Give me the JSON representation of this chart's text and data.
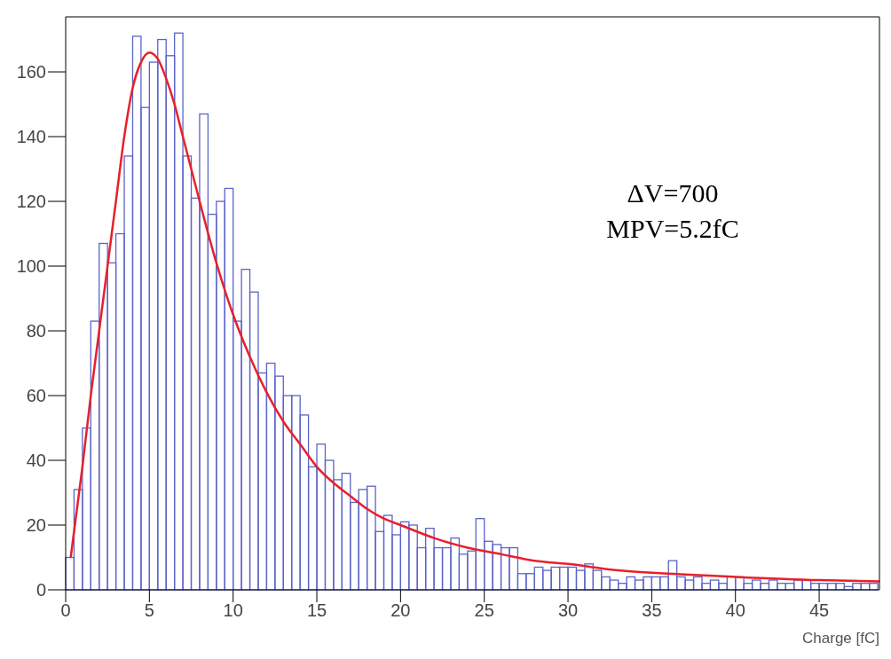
{
  "chart_data": {
    "type": "histogram",
    "xlabel": "Charge [fC]",
    "annotations": [
      "ΔV=700",
      "MPV=5.2fC"
    ],
    "bins": [
      0,
      0.5,
      1,
      1.5,
      2,
      2.5,
      3,
      3.5,
      4,
      4.5,
      5,
      5.5,
      6,
      6.5,
      7,
      7.5,
      8,
      8.5,
      9,
      9.5,
      10,
      10.5,
      11,
      11.5,
      12,
      12.5,
      13,
      13.5,
      14,
      14.5,
      15,
      15.5,
      16,
      16.5,
      17,
      17.5,
      18,
      18.5,
      19,
      19.5,
      20,
      20.5,
      21,
      21.5,
      22,
      22.5,
      23,
      23.5,
      24,
      24.5,
      25,
      25.5,
      26,
      26.5,
      27,
      27.5,
      28,
      28.5,
      29,
      29.5,
      30,
      30.5,
      31,
      31.5,
      32,
      32.5,
      33,
      33.5,
      34,
      34.5,
      35,
      35.5,
      36,
      36.5,
      37,
      37.5,
      38,
      38.5,
      39,
      39.5,
      40,
      40.5,
      41,
      41.5,
      42,
      42.5,
      43,
      43.5,
      44,
      44.5,
      45,
      45.5,
      46,
      46.5,
      47,
      47.5,
      48,
      48.5
    ],
    "series": [
      {
        "color": "#5a64c8",
        "values": [
          10,
          31,
          50,
          83,
          107,
          101,
          110,
          134,
          171,
          149,
          163,
          170,
          165,
          172,
          134,
          121,
          147,
          116,
          120,
          124,
          83,
          99,
          92,
          67,
          70,
          66,
          60,
          60,
          54,
          38,
          45,
          40,
          34,
          36,
          27,
          31,
          32,
          18,
          23,
          17,
          21,
          20,
          13,
          19,
          13,
          13,
          16,
          11,
          12,
          22,
          15,
          14,
          13,
          13,
          5,
          5,
          7,
          6,
          7,
          7,
          7,
          6,
          8,
          6,
          4,
          3,
          2,
          4,
          3,
          4,
          4,
          4,
          9,
          4,
          3,
          4,
          2,
          3,
          2,
          4,
          4,
          2,
          3,
          2,
          3,
          2,
          2,
          3,
          3,
          2,
          2,
          2,
          2,
          1,
          2,
          2,
          2
        ]
      },
      {
        "type": "line",
        "color": "#e8202a",
        "x": [
          0.3,
          1,
          1.5,
          2,
          2.5,
          3,
          3.5,
          4,
          4.5,
          5,
          5.5,
          6,
          6.5,
          7,
          7.5,
          8,
          9,
          10,
          11,
          12,
          13,
          14,
          15,
          16,
          17,
          18,
          19,
          20,
          22,
          24,
          26,
          28,
          30,
          33,
          36,
          40,
          45,
          48.6
        ],
        "values": [
          10,
          38,
          60,
          80,
          100,
          120,
          140,
          155,
          163,
          166,
          164,
          158,
          150,
          140,
          130,
          120,
          101,
          85,
          72,
          61,
          52,
          45,
          38,
          33,
          29,
          25,
          22,
          20,
          16,
          13,
          11,
          9,
          8,
          6,
          5,
          4,
          3,
          2.6
        ]
      }
    ],
    "xlim": [
      0,
      48.6
    ],
    "xticks": [
      0,
      5,
      10,
      15,
      20,
      25,
      30,
      35,
      40,
      45
    ],
    "ylim": [
      0,
      177
    ],
    "yticks": [
      0,
      20,
      40,
      60,
      80,
      100,
      120,
      140,
      160
    ]
  }
}
